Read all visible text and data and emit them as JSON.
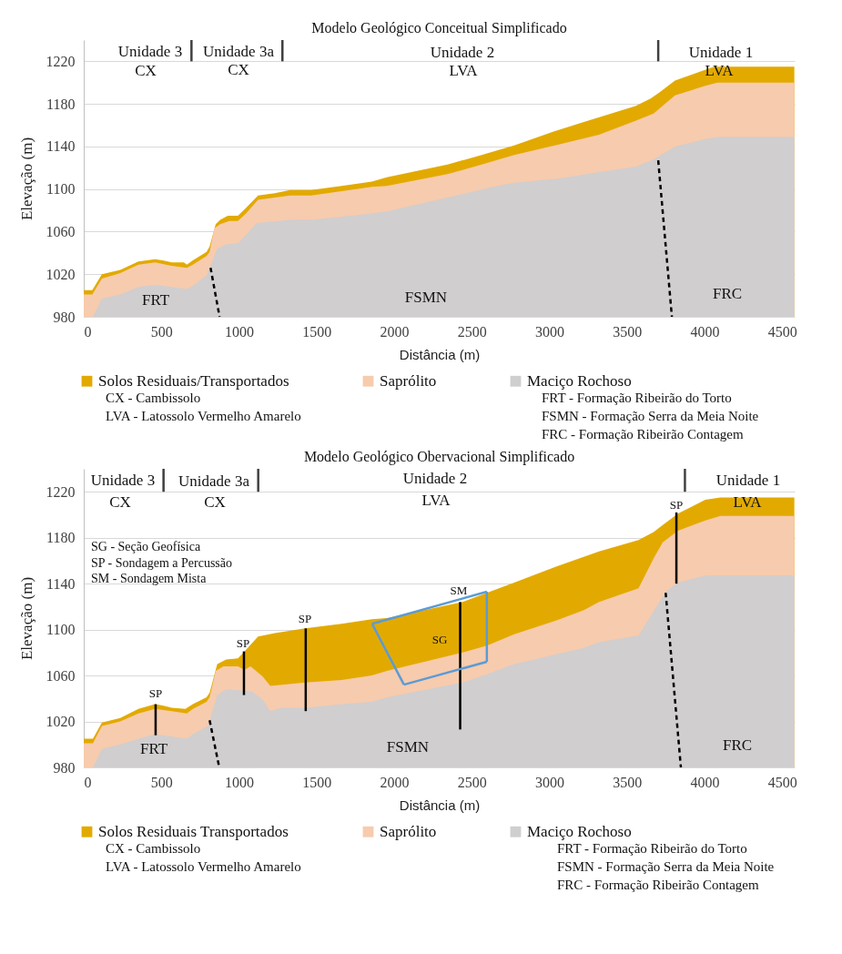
{
  "chart_data": [
    {
      "type": "area",
      "title": "Modelo Geológico Conceitual Simplificado",
      "xlabel": "Distância (m)",
      "ylabel": "Elevação (m)",
      "xlim": [
        0,
        4580
      ],
      "ylim": [
        980,
        1240
      ],
      "xticks": [
        0,
        500,
        1000,
        1500,
        2000,
        2500,
        3000,
        3500,
        4000,
        4500
      ],
      "yticks": [
        980,
        1020,
        1060,
        1100,
        1140,
        1180,
        1220
      ],
      "grid": "y",
      "legend": "bottom",
      "series": [
        {
          "name": "Solos Residuais/Transportados",
          "color": "#e2aa00",
          "x": [
            0,
            55,
            117,
            235,
            352,
            459,
            508,
            567,
            645,
            664,
            703,
            791,
            811,
            850,
            879,
            928,
            993,
            1036,
            1123,
            1231,
            1329,
            1465,
            1661,
            1856,
            1952,
            2343,
            2538,
            2773,
            3027,
            3222,
            3554,
            3652,
            3711,
            3809,
            3965,
            4062,
            4578
          ],
          "values": [
            1005,
            1005,
            1020,
            1024,
            1032,
            1034,
            1033,
            1031,
            1031,
            1029,
            1033,
            1041,
            1046,
            1067,
            1071,
            1075,
            1075,
            1081,
            1094,
            1096,
            1099,
            1099,
            1103,
            1107,
            1111,
            1123,
            1131,
            1141,
            1154,
            1163,
            1178,
            1185,
            1191,
            1202,
            1210,
            1215,
            1215
          ]
        },
        {
          "name": "Saprólito",
          "color": "#f7cbad",
          "x": [
            0,
            55,
            117,
            235,
            352,
            459,
            567,
            664,
            703,
            791,
            811,
            840,
            879,
            938,
            993,
            1045,
            1123,
            1329,
            1465,
            1661,
            1856,
            1952,
            2343,
            2538,
            2773,
            3066,
            3319,
            3554,
            3671,
            3809,
            4004,
            4082,
            4578
          ],
          "values": [
            1001,
            1001,
            1016,
            1021,
            1029,
            1031,
            1028,
            1026,
            1029,
            1037,
            1041,
            1063,
            1067,
            1070,
            1070,
            1077,
            1090,
            1094,
            1094,
            1098,
            1102,
            1103,
            1114,
            1122,
            1132,
            1142,
            1151,
            1164,
            1171,
            1188,
            1197,
            1200,
            1200
          ]
        },
        {
          "name": "Maciço Rochoso",
          "color": "#d0cecf",
          "x": [
            0,
            59,
            117,
            235,
            352,
            459,
            567,
            664,
            703,
            791,
            860,
            918,
            993,
            1045,
            1114,
            1329,
            1465,
            1661,
            1856,
            1952,
            2343,
            2636,
            2773,
            3066,
            3319,
            3554,
            3671,
            3809,
            4004,
            4082,
            4578
          ],
          "values": [
            980,
            980,
            997,
            1001,
            1008,
            1010,
            1008,
            1006,
            1009,
            1019,
            1044,
            1048,
            1049,
            1057,
            1068,
            1071,
            1071,
            1074,
            1077,
            1079,
            1092,
            1102,
            1106,
            1110,
            1116,
            1121,
            1128,
            1140,
            1147,
            1149,
            1149
          ]
        },
        {
          "type": "line",
          "color": "#000000",
          "line_style": "dashed",
          "x": [
            817,
            875
          ],
          "values": [
            1026,
            980
          ]
        },
        {
          "type": "line",
          "color": "#000000",
          "line_style": "dashed",
          "x": [
            3701,
            3789
          ],
          "values": [
            1127,
            980
          ]
        },
        {
          "type": "line",
          "color": "#404040",
          "x": [
            694,
            694
          ],
          "values": [
            1220,
            1240
          ]
        },
        {
          "type": "line",
          "color": "#404040",
          "x": [
            1280,
            1280
          ],
          "values": [
            1220,
            1240
          ]
        },
        {
          "type": "line",
          "color": "#404040",
          "x": [
            3701,
            3701
          ],
          "values": [
            1220,
            1240
          ]
        }
      ],
      "annotations": [
        "Unidade 3",
        "CX",
        "Unidade 3a",
        "CX",
        "Unidade 2",
        "LVA",
        "Unidade 1",
        "LVA",
        "FRT",
        "FSMN",
        "FRC",
        "CX - Cambissolo",
        "LVA - Latossolo Vermelho Amarelo",
        "FRT - Formação Ribeirão do Torto",
        "FSMN - Formação Serra da Meia Noite",
        "FRC - Formação Ribeirão Contagem"
      ]
    },
    {
      "type": "area",
      "title": "Modelo Geológico Obervacional Simplificado",
      "xlabel": "Distância (m)",
      "ylabel": "Elevação (m)",
      "xlim": [
        0,
        4580
      ],
      "ylim": [
        980,
        1240
      ],
      "xticks": [
        0,
        500,
        1000,
        1500,
        2000,
        2500,
        3000,
        3500,
        4000,
        4500
      ],
      "yticks": [
        980,
        1020,
        1060,
        1100,
        1140,
        1180,
        1220
      ],
      "grid": "y",
      "legend": "bottom",
      "series": [
        {
          "name": "Solos Residuais Transportados",
          "color": "#e2aa00",
          "x": [
            0,
            59,
            117,
            235,
            352,
            459,
            508,
            567,
            655,
            703,
            791,
            811,
            860,
            918,
            993,
            1036,
            1123,
            1231,
            1426,
            1661,
            1856,
            1952,
            2441,
            2597,
            2773,
            3046,
            3320,
            3574,
            3671,
            3730,
            3828,
            4004,
            4102,
            4578
          ],
          "values": [
            1005,
            1005,
            1019,
            1023,
            1031,
            1035,
            1034,
            1032,
            1031,
            1035,
            1041,
            1045,
            1070,
            1074,
            1075,
            1081,
            1094,
            1097,
            1101,
            1105,
            1109,
            1110,
            1124,
            1132,
            1141,
            1155,
            1168,
            1178,
            1185,
            1191,
            1201,
            1213,
            1215,
            1215
          ]
        },
        {
          "name": "Saprólito",
          "color": "#f7cbad",
          "x": [
            0,
            59,
            117,
            235,
            352,
            459,
            567,
            664,
            703,
            791,
            811,
            850,
            899,
            993,
            1036,
            1075,
            1153,
            1202,
            1426,
            1661,
            1856,
            1952,
            2441,
            2597,
            2773,
            3046,
            3222,
            3320,
            3574,
            3671,
            3730,
            3828,
            4004,
            4102,
            4578
          ],
          "values": [
            1001,
            1001,
            1016,
            1020,
            1027,
            1031,
            1029,
            1027,
            1031,
            1037,
            1041,
            1064,
            1068,
            1068,
            1065,
            1068,
            1059,
            1051,
            1054,
            1056,
            1060,
            1064,
            1080,
            1086,
            1096,
            1108,
            1117,
            1124,
            1136,
            1162,
            1176,
            1186,
            1195,
            1199,
            1199
          ]
        },
        {
          "name": "Maciço Rochoso",
          "color": "#d0cecf",
          "x": [
            0,
            59,
            117,
            235,
            352,
            459,
            567,
            664,
            703,
            801,
            860,
            918,
            1016,
            1084,
            1153,
            1202,
            1270,
            1426,
            1661,
            1856,
            1952,
            2441,
            2597,
            2773,
            3222,
            3320,
            3574,
            3671,
            3749,
            3828,
            4004,
            4102,
            4578
          ],
          "values": [
            980,
            980,
            996,
            1000,
            1005,
            1009,
            1007,
            1005,
            1009,
            1016,
            1043,
            1048,
            1047,
            1046,
            1039,
            1029,
            1032,
            1032,
            1035,
            1037,
            1041,
            1054,
            1061,
            1070,
            1084,
            1089,
            1095,
            1116,
            1133,
            1141,
            1147,
            1147,
            1147
          ]
        },
        {
          "type": "line",
          "color": "#000000",
          "line_style": "dashed",
          "x": [
            811,
            873
          ],
          "values": [
            1021,
            980
          ]
        },
        {
          "type": "line",
          "color": "#000000",
          "line_style": "dashed",
          "x": [
            3749,
            3847
          ],
          "values": [
            1132,
            980
          ]
        },
        {
          "type": "line",
          "color": "#000000",
          "x": [
            463,
            463
          ],
          "values": [
            1035,
            1008
          ]
        },
        {
          "type": "line",
          "color": "#000000",
          "x": [
            1032,
            1032
          ],
          "values": [
            1081,
            1043
          ]
        },
        {
          "type": "line",
          "color": "#000000",
          "x": [
            1430,
            1430
          ],
          "values": [
            1101,
            1029
          ]
        },
        {
          "type": "line",
          "color": "#000000",
          "x": [
            2425,
            2425
          ],
          "values": [
            1124,
            1013
          ]
        },
        {
          "type": "line",
          "color": "#000000",
          "x": [
            3818,
            3818
          ],
          "values": [
            1202,
            1140
          ]
        },
        {
          "type": "line",
          "color": "#5b9bd5",
          "x": [
            1858,
            2597
          ],
          "values": [
            1105,
            1133
          ]
        },
        {
          "type": "line",
          "color": "#5b9bd5",
          "x": [
            2597,
            2597
          ],
          "values": [
            1133,
            1072
          ]
        },
        {
          "type": "line",
          "color": "#5b9bd5",
          "x": [
            2063,
            2597
          ],
          "values": [
            1052,
            1072
          ]
        },
        {
          "type": "line",
          "color": "#5b9bd5",
          "x": [
            1858,
            2063
          ],
          "values": [
            1105,
            1052
          ]
        },
        {
          "type": "line",
          "color": "#404040",
          "x": [
            514,
            514
          ],
          "values": [
            1220,
            1240
          ]
        },
        {
          "type": "line",
          "color": "#404040",
          "x": [
            1124,
            1124
          ],
          "values": [
            1220,
            1240
          ]
        },
        {
          "type": "line",
          "color": "#404040",
          "x": [
            3873,
            3873
          ],
          "values": [
            1220,
            1240
          ]
        }
      ],
      "annotations": [
        "Unidade 3",
        "CX",
        "Unidade 3a",
        "CX",
        "Unidade 2",
        "LVA",
        "Unidade 1",
        "LVA",
        "FRT",
        "FSMN",
        "FRC",
        "SP",
        "SP",
        "SP",
        "SM",
        "SP",
        "SG",
        "SG - Seção Geofísica",
        "SP - Sondagem a Percussão",
        "SM - Sondagem Mista",
        "CX - Cambissolo",
        "LVA - Latossolo Vermelho Amarelo",
        "FRT - Formação Ribeirão do Torto",
        "FSMN - Formação Serra da Meia Noite",
        "FRC - Formação Ribeirão Contagem"
      ]
    }
  ]
}
